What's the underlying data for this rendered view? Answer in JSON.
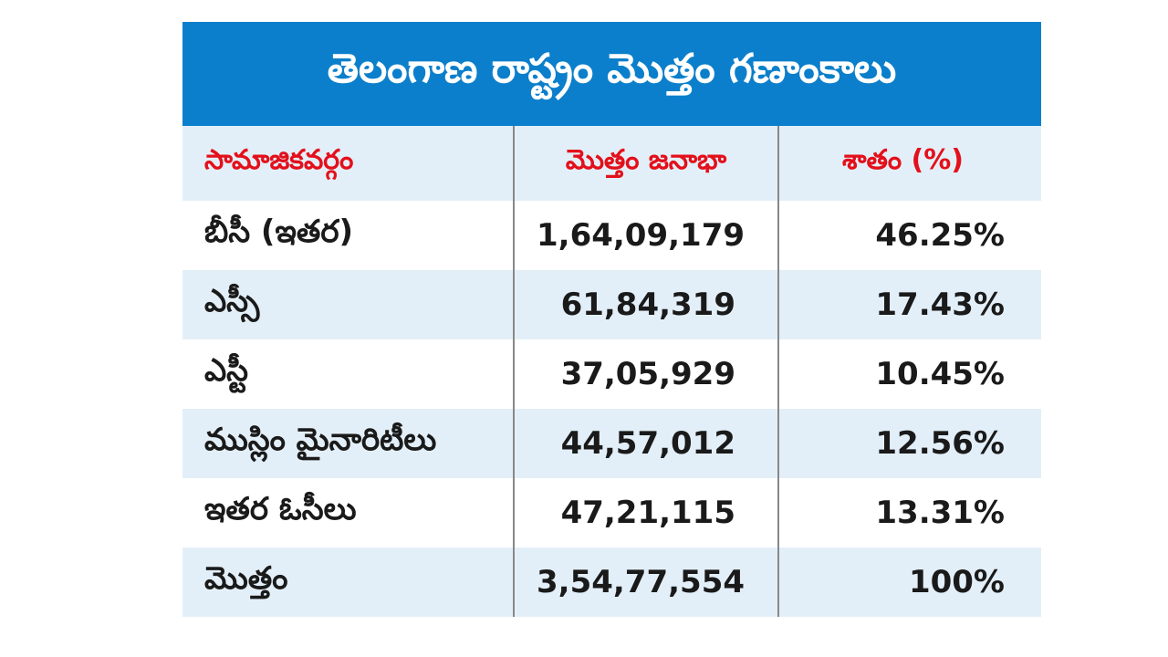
{
  "header": {
    "title": "తెలంగాణ రాష్ట్రం మొత్తం గణాంకాలు"
  },
  "table": {
    "columns": [
      "సామాజికవర్గం",
      "మొత్తం జనాభా",
      "శాతం (%)"
    ],
    "rows": [
      [
        "బీసీ (ఇతర)",
        "1,64,09,179",
        "46.25%"
      ],
      [
        "ఎస్సీ",
        "61,84,319",
        "17.43%"
      ],
      [
        "ఎస్టీ",
        "37,05,929",
        "10.45%"
      ],
      [
        "ముస్లిం మైనారిటీలు",
        "44,57,012",
        "12.56%"
      ],
      [
        "ఇతర ఓసీలు",
        "47,21,115",
        "13.31%"
      ],
      [
        "మొత్తం",
        "3,54,77,554",
        "100%"
      ]
    ]
  }
}
